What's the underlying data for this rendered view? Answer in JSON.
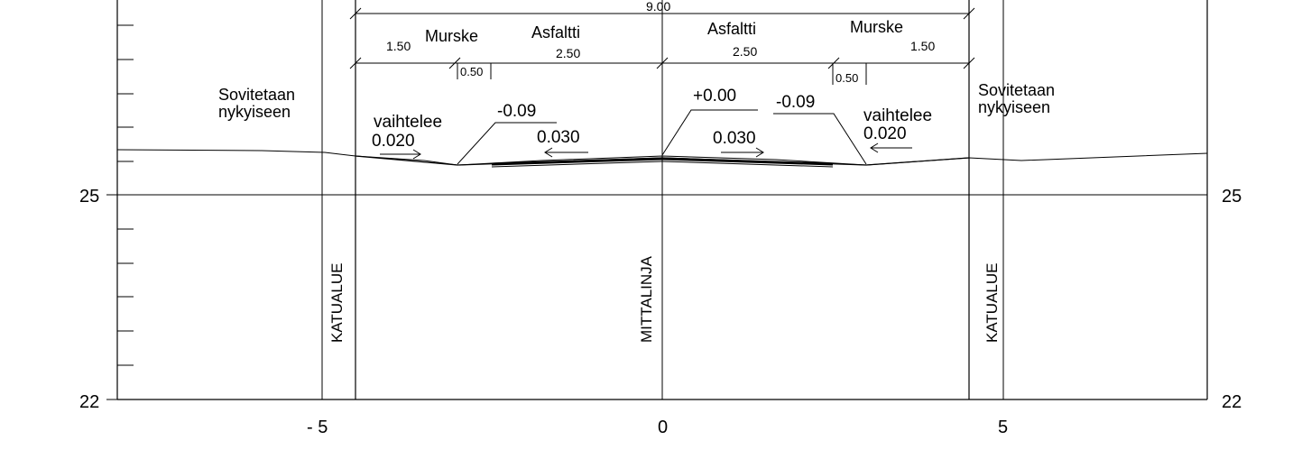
{
  "axis": {
    "y_labels": {
      "upper": "25",
      "lower": "22"
    },
    "x_labels": {
      "left": "- 5",
      "center": "0",
      "right": "5"
    }
  },
  "dimensions": {
    "total_width": "9.00",
    "left_murske_width": "1.50",
    "left_asfaltti_width": "2.50",
    "right_asfaltti_width": "2.50",
    "right_murske_width": "1.50",
    "left_gap": "0.50",
    "right_gap": "0.50"
  },
  "materials": {
    "left_murske": "Murske",
    "left_asfaltti": "Asfaltti",
    "right_asfaltti": "Asfaltti",
    "right_murske": "Murske"
  },
  "notes": {
    "left_fit_line1": "Sovitetaan",
    "left_fit_line2": "nykyiseen",
    "right_fit_line1": "Sovitetaan",
    "right_fit_line2": "nykyiseen",
    "left_varies": "vaihtelee",
    "right_varies": "vaihtelee"
  },
  "elevations": {
    "left_edge": "-0.09",
    "centerline": "+0.00",
    "right_edge": "-0.09"
  },
  "slopes": {
    "left_outer": "0.020",
    "left_inner": "0.030",
    "right_inner": "0.030",
    "right_outer": "0.020"
  },
  "vertical_labels": {
    "left_street": "KATUALUE",
    "center": "MITTALINJA",
    "right_street": "KATUALUE"
  }
}
